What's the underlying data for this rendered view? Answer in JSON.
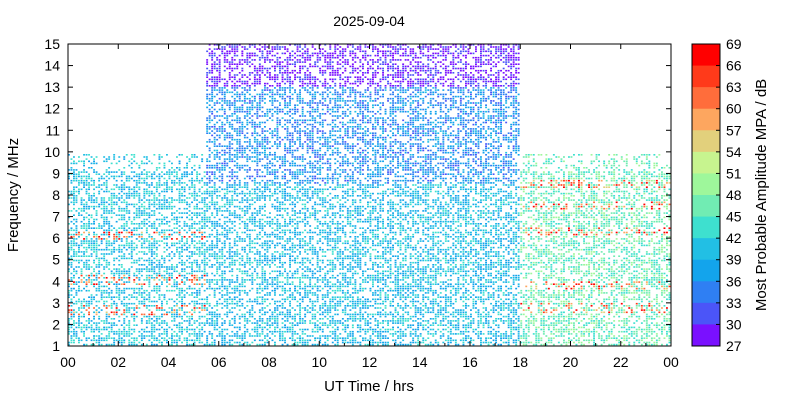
{
  "chart_data": {
    "type": "heatmap",
    "title": "2025-09-04",
    "xlabel": "UT Time / hrs",
    "ylabel": "Frequency / MHz",
    "xlim": [
      0,
      24
    ],
    "ylim": [
      1,
      15
    ],
    "x_ticks": [
      "00",
      "02",
      "04",
      "06",
      "08",
      "10",
      "12",
      "14",
      "16",
      "18",
      "20",
      "22",
      "00"
    ],
    "y_ticks": [
      "1",
      "2",
      "3",
      "4",
      "5",
      "6",
      "7",
      "8",
      "9",
      "10",
      "11",
      "12",
      "13",
      "14",
      "15"
    ],
    "colorbar": {
      "label": "Most Probable Amplitude MPA / dB",
      "min": 27,
      "max": 69,
      "ticks": [
        "69",
        "66",
        "63",
        "60",
        "57",
        "54",
        "51",
        "48",
        "45",
        "42",
        "39",
        "36",
        "33",
        "30",
        "27"
      ],
      "bands": [
        {
          "from": 66,
          "to": 69,
          "color": "#ff0000"
        },
        {
          "from": 63,
          "to": 66,
          "color": "#ff3a1a"
        },
        {
          "from": 60,
          "to": 63,
          "color": "#ff6d3b"
        },
        {
          "from": 57,
          "to": 60,
          "color": "#fda65f"
        },
        {
          "from": 54,
          "to": 57,
          "color": "#e2d07c"
        },
        {
          "from": 51,
          "to": 54,
          "color": "#c7f48f"
        },
        {
          "from": 48,
          "to": 51,
          "color": "#9ef79b"
        },
        {
          "from": 45,
          "to": 48,
          "color": "#71ecb3"
        },
        {
          "from": 42,
          "to": 45,
          "color": "#3ee0cf"
        },
        {
          "from": 39,
          "to": 42,
          "color": "#22bfe4"
        },
        {
          "from": 36,
          "to": 39,
          "color": "#13a4ec"
        },
        {
          "from": 33,
          "to": 36,
          "color": "#2f7ff3"
        },
        {
          "from": 30,
          "to": 33,
          "color": "#4b55f8"
        },
        {
          "from": 27,
          "to": 30,
          "color": "#7a10ff"
        }
      ]
    },
    "regions": [
      {
        "t0": 0.0,
        "t1": 5.5,
        "f0": 1.0,
        "f1": 9.9,
        "dominant_mpa": 41,
        "strong_bands_MHz": [
          [
            2.4,
            2.9
          ],
          [
            3.8,
            4.3
          ],
          [
            5.8,
            6.2
          ]
        ]
      },
      {
        "t0": 5.5,
        "t1": 18.0,
        "f0": 1.0,
        "f1": 8.5,
        "dominant_mpa": 40,
        "strong_bands_MHz": []
      },
      {
        "t0": 5.5,
        "t1": 18.0,
        "f0": 8.5,
        "f1": 13.0,
        "dominant_mpa": 36,
        "strong_bands_MHz": []
      },
      {
        "t0": 5.5,
        "t1": 18.0,
        "f0": 13.0,
        "f1": 15.0,
        "dominant_mpa": 29,
        "strong_bands_MHz": []
      },
      {
        "t0": 18.0,
        "t1": 24.0,
        "f0": 1.0,
        "f1": 9.9,
        "dominant_mpa": 46,
        "strong_bands_MHz": [
          [
            2.5,
            3.0
          ],
          [
            3.6,
            4.0
          ],
          [
            6.0,
            6.4
          ],
          [
            7.2,
            7.6
          ],
          [
            8.2,
            8.6
          ]
        ]
      }
    ]
  }
}
